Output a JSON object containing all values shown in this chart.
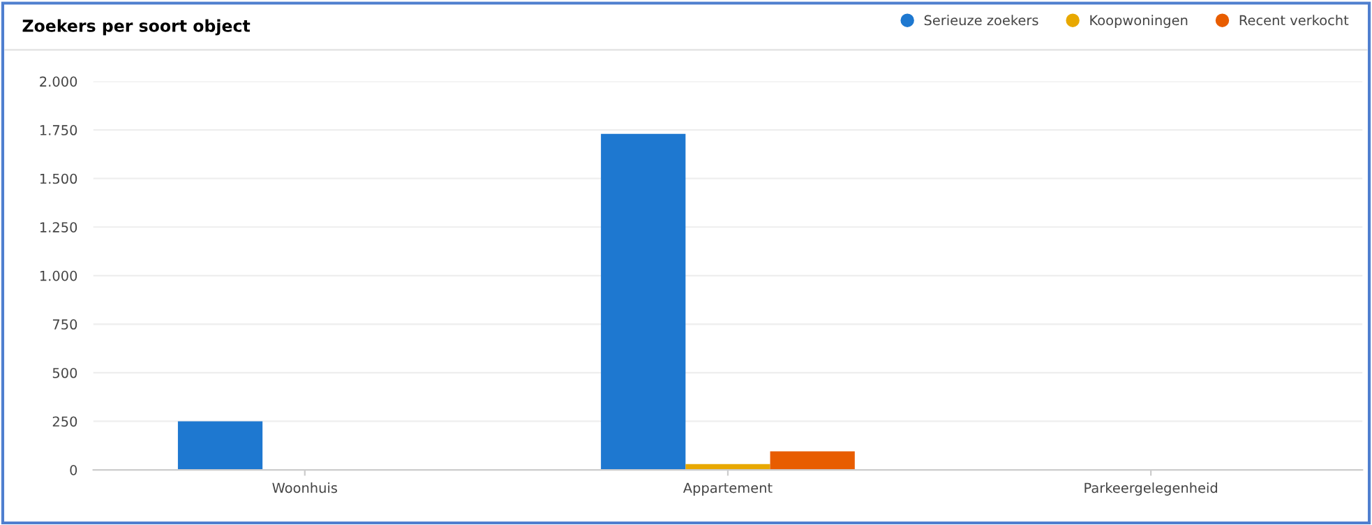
{
  "chart_data": {
    "type": "bar",
    "title": "Zoekers per soort object",
    "categories": [
      "Woonhuis",
      "Appartement",
      "Parkeergelegenheid"
    ],
    "series": [
      {
        "name": "Serieuze zoekers",
        "color": "#1e78d0",
        "values": [
          250,
          1730,
          0
        ]
      },
      {
        "name": "Koopwoningen",
        "color": "#e8a800",
        "values": [
          0,
          30,
          0
        ]
      },
      {
        "name": "Recent verkocht",
        "color": "#e85d00",
        "values": [
          0,
          95,
          0
        ]
      }
    ],
    "ylim": [
      0,
      2000
    ],
    "yticks": [
      {
        "value": 0,
        "label": "0"
      },
      {
        "value": 250,
        "label": "250"
      },
      {
        "value": 500,
        "label": "500"
      },
      {
        "value": 750,
        "label": "750"
      },
      {
        "value": 1000,
        "label": "1.000"
      },
      {
        "value": 1250,
        "label": "1.250"
      },
      {
        "value": 1500,
        "label": "1.500"
      },
      {
        "value": 1750,
        "label": "1.750"
      },
      {
        "value": 2000,
        "label": "2.000"
      }
    ],
    "grid": "y",
    "legend": "top right"
  }
}
